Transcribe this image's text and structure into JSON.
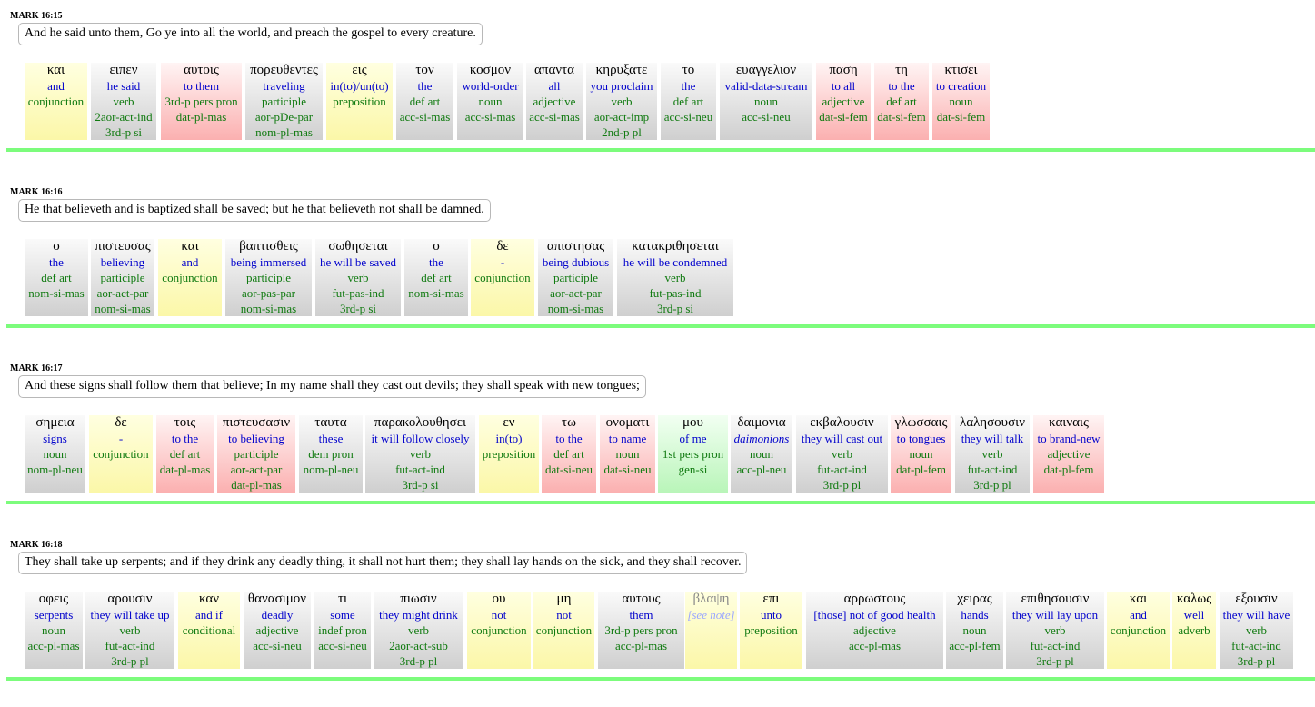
{
  "verses": [
    {
      "ref": "MARK 16:15",
      "english": "And he said unto them, Go ye into all the world, and preach the gospel to every creature.",
      "words": [
        {
          "greek": "και",
          "gloss": "and",
          "grammar": [
            "conjunction"
          ],
          "color": "yellow"
        },
        {
          "greek": "ειπεν",
          "gloss": "he said",
          "grammar": [
            "verb",
            "2aor-act-ind",
            "3rd-p si"
          ],
          "color": "gray"
        },
        {
          "greek": "αυτοις",
          "gloss": "to them",
          "grammar": [
            "3rd-p pers pron",
            "dat-pl-mas"
          ],
          "color": "red"
        },
        {
          "greek": "πορευθεντες",
          "gloss": "traveling",
          "grammar": [
            "participle",
            "aor-pDe-par",
            "nom-pl-mas"
          ],
          "color": "gray"
        },
        {
          "greek": "εις",
          "gloss": "in(to)/un(to)",
          "grammar": [
            "preposition"
          ],
          "color": "yellow"
        },
        {
          "greek": "τον",
          "gloss": "the",
          "grammar": [
            "def art",
            "acc-si-mas"
          ],
          "color": "gray"
        },
        {
          "greek": "κοσμον",
          "gloss": "world-order",
          "grammar": [
            "noun",
            "acc-si-mas"
          ],
          "color": "gray"
        },
        {
          "greek": "απαντα",
          "gloss": "all",
          "grammar": [
            "adjective",
            "acc-si-mas"
          ],
          "color": "gray"
        },
        {
          "greek": "κηρυξατε",
          "gloss": "you proclaim",
          "grammar": [
            "verb",
            "aor-act-imp",
            "2nd-p pl"
          ],
          "color": "gray"
        },
        {
          "greek": "το",
          "gloss": "the",
          "grammar": [
            "def art",
            "acc-si-neu"
          ],
          "color": "gray"
        },
        {
          "greek": "ευαγγελιον",
          "gloss": "valid-data-stream",
          "grammar": [
            "noun",
            "acc-si-neu"
          ],
          "color": "gray"
        },
        {
          "greek": "παση",
          "gloss": "to all",
          "grammar": [
            "adjective",
            "dat-si-fem"
          ],
          "color": "red"
        },
        {
          "greek": "τη",
          "gloss": "to the",
          "grammar": [
            "def art",
            "dat-si-fem"
          ],
          "color": "red"
        },
        {
          "greek": "κτισει",
          "gloss": "to creation",
          "grammar": [
            "noun",
            "dat-si-fem"
          ],
          "color": "red"
        }
      ]
    },
    {
      "ref": "MARK 16:16",
      "english": "He that believeth and is baptized shall be saved; but he that believeth not shall be damned.",
      "words": [
        {
          "greek": "ο",
          "gloss": "the",
          "grammar": [
            "def art",
            "nom-si-mas"
          ],
          "color": "gray"
        },
        {
          "greek": "πιστευσας",
          "gloss": "believing",
          "grammar": [
            "participle",
            "aor-act-par",
            "nom-si-mas"
          ],
          "color": "gray"
        },
        {
          "greek": "και",
          "gloss": "and",
          "grammar": [
            "conjunction"
          ],
          "color": "yellow"
        },
        {
          "greek": "βαπτισθεις",
          "gloss": "being immersed",
          "grammar": [
            "participle",
            "aor-pas-par",
            "nom-si-mas"
          ],
          "color": "gray"
        },
        {
          "greek": "σωθησεται",
          "gloss": "he will be saved",
          "grammar": [
            "verb",
            "fut-pas-ind",
            "3rd-p si"
          ],
          "color": "gray"
        },
        {
          "greek": "ο",
          "gloss": "the",
          "grammar": [
            "def art",
            "nom-si-mas"
          ],
          "color": "gray"
        },
        {
          "greek": "δε",
          "gloss": "-",
          "grammar": [
            "conjunction"
          ],
          "color": "yellow"
        },
        {
          "greek": "απιστησας",
          "gloss": "being dubious",
          "grammar": [
            "participle",
            "aor-act-par",
            "nom-si-mas"
          ],
          "color": "gray"
        },
        {
          "greek": "κατακριθησεται",
          "gloss": "he will be condemned",
          "grammar": [
            "verb",
            "fut-pas-ind",
            "3rd-p si"
          ],
          "color": "gray"
        }
      ]
    },
    {
      "ref": "MARK 16:17",
      "english": "And these signs shall follow them that believe; In my name shall they cast out devils; they shall speak with new tongues;",
      "words": [
        {
          "greek": "σημεια",
          "gloss": "signs",
          "grammar": [
            "noun",
            "nom-pl-neu"
          ],
          "color": "gray"
        },
        {
          "greek": "δε",
          "gloss": "-",
          "grammar": [
            "conjunction"
          ],
          "color": "yellow"
        },
        {
          "greek": "τοις",
          "gloss": "to the",
          "grammar": [
            "def art",
            "dat-pl-mas"
          ],
          "color": "red"
        },
        {
          "greek": "πιστευσασιν",
          "gloss": "to believing",
          "grammar": [
            "participle",
            "aor-act-par",
            "dat-pl-mas"
          ],
          "color": "red"
        },
        {
          "greek": "ταυτα",
          "gloss": "these",
          "grammar": [
            "dem pron",
            "nom-pl-neu"
          ],
          "color": "gray"
        },
        {
          "greek": "παρακολουθησει",
          "gloss": "it will follow closely",
          "grammar": [
            "verb",
            "fut-act-ind",
            "3rd-p si"
          ],
          "color": "gray"
        },
        {
          "greek": "εν",
          "gloss": "in(to)",
          "grammar": [
            "preposition"
          ],
          "color": "yellow"
        },
        {
          "greek": "τω",
          "gloss": "to the",
          "grammar": [
            "def art",
            "dat-si-neu"
          ],
          "color": "red"
        },
        {
          "greek": "ονοματι",
          "gloss": "to name",
          "grammar": [
            "noun",
            "dat-si-neu"
          ],
          "color": "red"
        },
        {
          "greek": "μου",
          "gloss": "of me",
          "grammar": [
            "1st pers pron",
            "gen-si"
          ],
          "color": "green"
        },
        {
          "greek": "δαιμονια",
          "gloss": "daimonions",
          "gloss_italic": true,
          "grammar": [
            "noun",
            "acc-pl-neu"
          ],
          "color": "gray"
        },
        {
          "greek": "εκβαλουσιν",
          "gloss": "they will cast out",
          "grammar": [
            "verb",
            "fut-act-ind",
            "3rd-p pl"
          ],
          "color": "gray"
        },
        {
          "greek": "γλωσσαις",
          "gloss": "to tongues",
          "grammar": [
            "noun",
            "dat-pl-fem"
          ],
          "color": "red"
        },
        {
          "greek": "λαλησουσιν",
          "gloss": "they will talk",
          "grammar": [
            "verb",
            "fut-act-ind",
            "3rd-p pl"
          ],
          "color": "gray"
        },
        {
          "greek": "καιναις",
          "gloss": "to brand-new",
          "grammar": [
            "adjective",
            "dat-pl-fem"
          ],
          "color": "red"
        }
      ]
    },
    {
      "ref": "MARK 16:18",
      "english": "They shall take up serpents; and if they drink any deadly thing, it shall not hurt them; they shall lay hands on the sick, and they shall recover.",
      "words": [
        {
          "greek": "οφεις",
          "gloss": "serpents",
          "grammar": [
            "noun",
            "acc-pl-mas"
          ],
          "color": "gray"
        },
        {
          "greek": "αρουσιν",
          "gloss": "they will take up",
          "grammar": [
            "verb",
            "fut-act-ind",
            "3rd-p pl"
          ],
          "color": "gray"
        },
        {
          "greek": "καν",
          "gloss": "and if",
          "grammar": [
            "conditional"
          ],
          "color": "yellow"
        },
        {
          "greek": "θανασιμον",
          "gloss": "deadly",
          "grammar": [
            "adjective",
            "acc-si-neu"
          ],
          "color": "gray"
        },
        {
          "greek": "τι",
          "gloss": "some",
          "grammar": [
            "indef pron",
            "acc-si-neu"
          ],
          "color": "gray"
        },
        {
          "greek": "πιωσιν",
          "gloss": "they might drink",
          "grammar": [
            "verb",
            "2aor-act-sub",
            "3rd-p pl"
          ],
          "color": "gray"
        },
        {
          "greek": "ου",
          "gloss": "not",
          "grammar": [
            "conjunction"
          ],
          "color": "yellow"
        },
        {
          "greek": "μη",
          "gloss": "not",
          "grammar": [
            "conjunction"
          ],
          "color": "yellow"
        },
        {
          "greek": "αυτους",
          "gloss": "them",
          "grammar": [
            "3rd-p pers pron",
            "acc-pl-mas"
          ],
          "color": "gray"
        },
        {
          "greek": "βλαψη",
          "gloss": "[see note]",
          "gloss_see": true,
          "greek_faint": true,
          "grammar": [],
          "color": "yellow"
        },
        {
          "greek": "επι",
          "gloss": "unto",
          "grammar": [
            "preposition"
          ],
          "color": "yellow"
        },
        {
          "greek": "αρρωστους",
          "gloss": "[those] not of good health",
          "grammar": [
            "adjective",
            "acc-pl-mas"
          ],
          "color": "gray"
        },
        {
          "greek": "χειρας",
          "gloss": "hands",
          "grammar": [
            "noun",
            "acc-pl-fem"
          ],
          "color": "gray"
        },
        {
          "greek": "επιθησουσιν",
          "gloss": "they will lay upon",
          "grammar": [
            "verb",
            "fut-act-ind",
            "3rd-p pl"
          ],
          "color": "gray"
        },
        {
          "greek": "και",
          "gloss": "and",
          "grammar": [
            "conjunction"
          ],
          "color": "yellow"
        },
        {
          "greek": "καλως",
          "gloss": "well",
          "grammar": [
            "adverb"
          ],
          "color": "yellow"
        },
        {
          "greek": "εξουσιν",
          "gloss": "they will have",
          "grammar": [
            "verb",
            "fut-act-ind",
            "3rd-p pl"
          ],
          "color": "gray"
        }
      ]
    }
  ]
}
